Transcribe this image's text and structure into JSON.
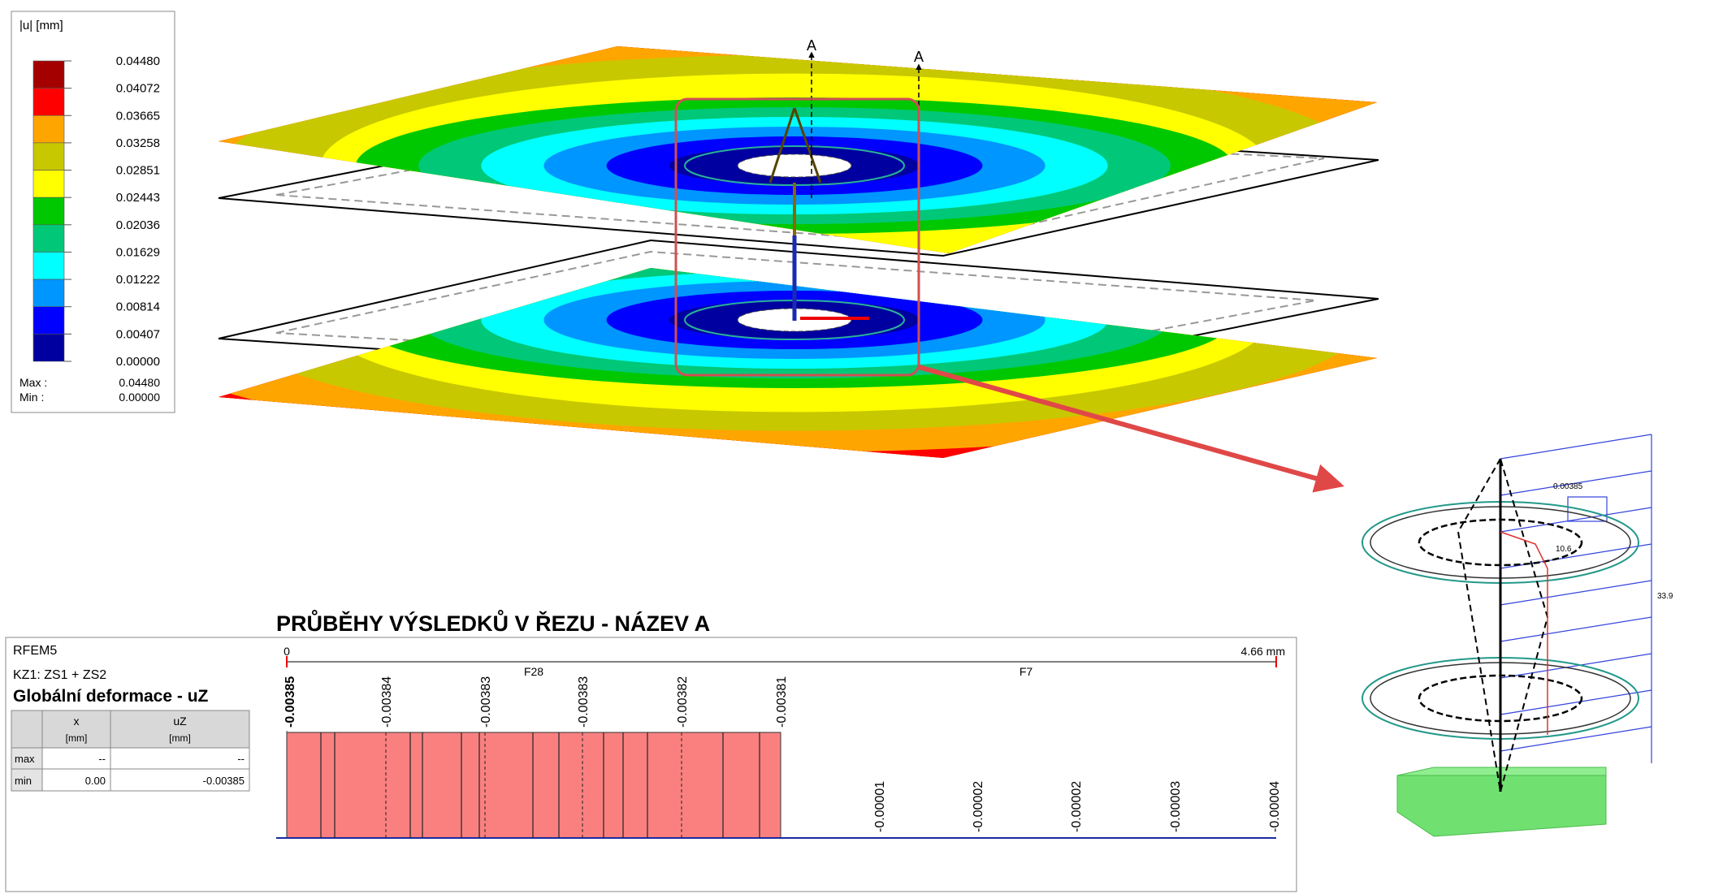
{
  "legend": {
    "title": "|u| [mm]",
    "labels": [
      "0.04480",
      "0.04072",
      "0.03665",
      "0.03258",
      "0.02851",
      "0.02443",
      "0.02036",
      "0.01629",
      "0.01222",
      "0.00814",
      "0.00407",
      "0.00000"
    ],
    "colors": [
      "#a50000",
      "#ff0000",
      "#ffa500",
      "#c8c800",
      "#ffff00",
      "#00c800",
      "#00c878",
      "#00ffff",
      "#0096ff",
      "#0000ff",
      "#0000a0"
    ],
    "max_label": "Max :",
    "max_value": "0.04480",
    "min_label": "Min :",
    "min_value": "0.00000"
  },
  "model_view": {
    "section_marks": [
      "A",
      "A"
    ],
    "inset_labels": [
      "0.00385",
      "10.6",
      "33.9"
    ]
  },
  "section_panel": {
    "title": "PRŮBĚHY VÝSLEDKŮ V ŘEZU - NÁZEV A",
    "program": "RFEM5",
    "load_case": "KZ1: ZS1 + ZS2",
    "result": "Globální deformace - uZ",
    "table": {
      "header": [
        {
          "name": "x",
          "unit": "[mm]"
        },
        {
          "name": "uZ",
          "unit": "[mm]"
        }
      ],
      "rows": [
        [
          "max",
          "--",
          "--"
        ],
        [
          "min",
          "0.00",
          "-0.00385"
        ]
      ]
    },
    "axis_start": "0",
    "axis_end": "4.66 mm",
    "members": [
      "F28",
      "F7"
    ],
    "value_labels": [
      "-0.00385",
      "-0.00384",
      "-0.00383",
      "-0.00383",
      "-0.00382",
      "-0.00381",
      "-0.00001",
      "-0.00002",
      "-0.00002",
      "-0.00003",
      "-0.00004"
    ]
  }
}
